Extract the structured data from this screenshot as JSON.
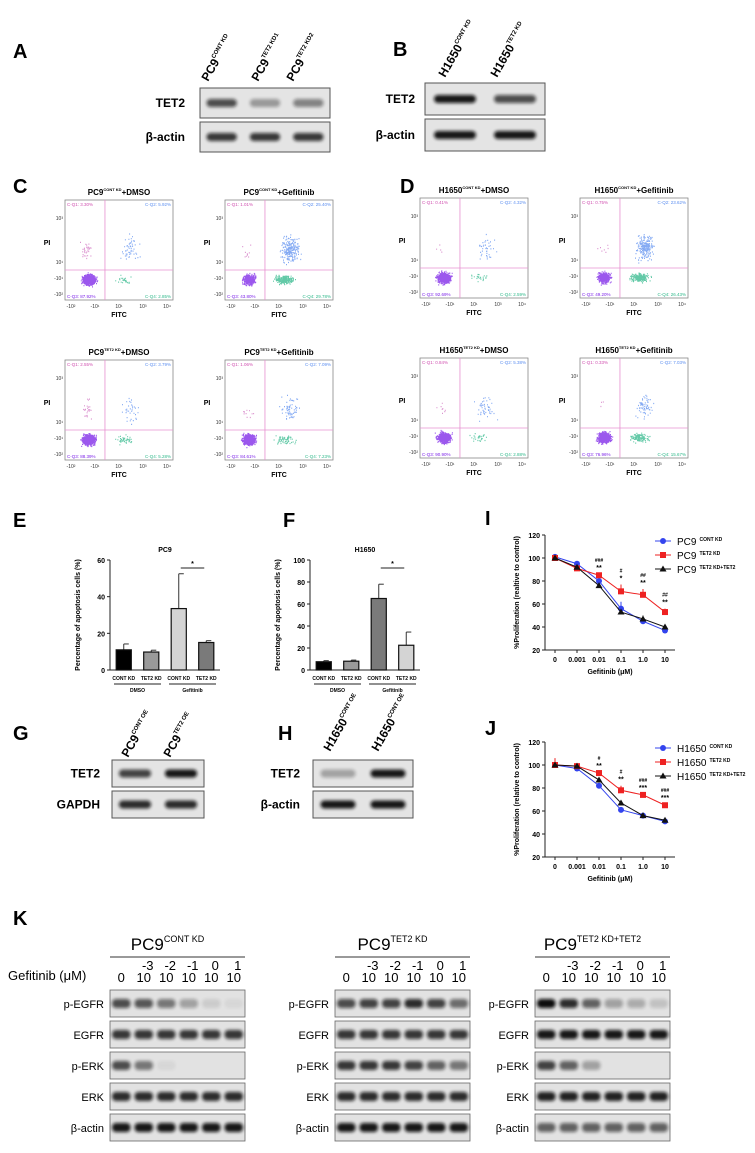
{
  "panel_A": {
    "label": "A",
    "lanes": [
      {
        "base": "PC9",
        "sup": "CONT KD"
      },
      {
        "base": "PC9",
        "sup": "TET2 KD1"
      },
      {
        "base": "PC9",
        "sup": "TET2 KD2"
      }
    ],
    "rows": [
      "TET2",
      "β-actin"
    ],
    "bands": [
      [
        0.7,
        0.35,
        0.45
      ],
      [
        0.8,
        0.8,
        0.8
      ]
    ]
  },
  "panel_B": {
    "label": "B",
    "lanes": [
      {
        "base": "H1650",
        "sup": "CONT KD"
      },
      {
        "base": "H1650",
        "sup": "TET2 KD"
      }
    ],
    "rows": [
      "TET2",
      "β-actin"
    ],
    "bands": [
      [
        0.95,
        0.7
      ],
      [
        0.95,
        0.95
      ]
    ]
  },
  "panel_C": {
    "label": "C",
    "x_label": "FITC",
    "y_label": "PI",
    "x_ticks": [
      "-10²",
      "-10¹",
      "10¹",
      "10³",
      "10⁴"
    ],
    "y_ticks": [
      "10³",
      "10¹",
      "-10¹",
      "-10²"
    ],
    "plots": [
      {
        "base": "PC9",
        "sup": "CONT KD",
        "suffix": "+DMSO",
        "q1": "C-Q1: 3.30%",
        "q2": "C-Q2: 5.92%",
        "q3": "C-Q3: 87.92%",
        "q4": "C-Q4: 2.85%",
        "fractions": [
          3.3,
          5.92,
          87.92,
          2.85
        ]
      },
      {
        "base": "PC9",
        "sup": "CONT KD",
        "suffix": "+Gefitinib",
        "q1": "C-Q1: 1.01%",
        "q2": "C-Q2: 25.40%",
        "q3": "C-Q3: 43.80%",
        "q4": "C-Q4: 29.78%",
        "fractions": [
          1.01,
          25.4,
          43.8,
          29.78
        ]
      },
      {
        "base": "PC9",
        "sup": "TET2 KD",
        "suffix": "+DMSO",
        "q1": "C-Q1: 2.55%",
        "q2": "C-Q2: 3.79%",
        "q3": "C-Q3: 88.39%",
        "q4": "C-Q4: 5.28%",
        "fractions": [
          2.55,
          3.79,
          88.39,
          5.28
        ]
      },
      {
        "base": "PC9",
        "sup": "TET2 KD",
        "suffix": "+Gefitinib",
        "q1": "C-Q1: 1.06%",
        "q2": "C-Q2: 7.09%",
        "q3": "C-Q3: 84.61%",
        "q4": "C-Q4: 7.23%",
        "fractions": [
          1.06,
          7.09,
          84.61,
          7.23
        ]
      }
    ]
  },
  "panel_D": {
    "label": "D",
    "x_label": "FITC",
    "y_label": "PI",
    "x_ticks": [
      "-10²",
      "-10¹",
      "10¹",
      "10³",
      "10⁴"
    ],
    "y_ticks": [
      "10³",
      "10¹",
      "-10¹",
      "-10²"
    ],
    "plots": [
      {
        "base": "H1650",
        "sup": "CONT KD",
        "suffix": "+DMSO",
        "q1": "C-Q1: 0.41%",
        "q2": "C-Q2: 4.32%",
        "q3": "C-Q3: 92.69%",
        "q4": "C-Q4: 2.59%",
        "fractions": [
          0.41,
          4.32,
          92.69,
          2.59
        ]
      },
      {
        "base": "H1650",
        "sup": "CONT KD",
        "suffix": "+Gefitinib",
        "q1": "C-Q1: 0.75%",
        "q2": "C-Q2: 23.62%",
        "q3": "C-Q3: 49.20%",
        "q4": "C-Q4: 26.43%",
        "fractions": [
          0.75,
          23.62,
          49.2,
          26.43
        ]
      },
      {
        "base": "H1650",
        "sup": "TET2 KD",
        "suffix": "+DMSO",
        "q1": "C-Q1: 0.84%",
        "q2": "C-Q2: 5.38%",
        "q3": "C-Q3: 90.90%",
        "q4": "C-Q4: 2.88%",
        "fractions": [
          0.84,
          5.38,
          90.9,
          2.88
        ]
      },
      {
        "base": "H1650",
        "sup": "TET2 KD",
        "suffix": "+Gefitinib",
        "q1": "C-Q1: 0.33%",
        "q2": "C-Q2: 7.03%",
        "q3": "C-Q3: 76.96%",
        "q4": "C-Q4: 15.67%",
        "fractions": [
          0.33,
          7.03,
          76.96,
          15.67
        ]
      }
    ]
  },
  "chart_data": [
    {
      "id": "E",
      "label": "E",
      "type": "bar",
      "title": "PC9",
      "ylabel": "Percentage of apoptosis cells (%)",
      "xlabel": "",
      "categories": [
        "CONT KD",
        "TET2 KD",
        "CONT KD",
        "TET2 KD"
      ],
      "groups": [
        "DMSO",
        "Gefitinib"
      ],
      "values": [
        11,
        9.8,
        33.5,
        15
      ],
      "errors": [
        3.2,
        1,
        19,
        1
      ],
      "colors": [
        "#000000",
        "#9a9a9a",
        "#d4d4d4",
        "#7a7a7a"
      ],
      "ylim": [
        0,
        60
      ],
      "yticks": [
        0,
        20,
        40,
        60
      ],
      "significance": "*"
    },
    {
      "id": "F",
      "label": "F",
      "type": "bar",
      "title": "H1650",
      "ylabel": "Percentage of apoptosis cells (%)",
      "xlabel": "",
      "categories": [
        "CONT KD",
        "TET2 KD",
        "CONT KD",
        "TET2 KD"
      ],
      "groups": [
        "DMSO",
        "Gefitinib"
      ],
      "values": [
        7.5,
        8,
        65,
        22.5
      ],
      "errors": [
        1,
        1,
        13,
        12
      ],
      "colors": [
        "#000000",
        "#9a9a9a",
        "#7a7a7a",
        "#d4d4d4"
      ],
      "ylim": [
        0,
        100
      ],
      "yticks": [
        0,
        20,
        40,
        60,
        80,
        100
      ],
      "significance": "*"
    },
    {
      "id": "I",
      "label": "I",
      "type": "line",
      "ylabel": "%Proliferation (realtive to control)",
      "xlabel": "Gefitinib (μM)",
      "x": [
        "0",
        "0.001",
        "0.01",
        "0.1",
        "1.0",
        "10"
      ],
      "ylim": [
        20,
        120
      ],
      "yticks": [
        20,
        40,
        60,
        80,
        100,
        120
      ],
      "series": [
        {
          "base": "PC9",
          "sup": "CONT KD",
          "color": "#3344ee",
          "marker": "circle",
          "values": [
            101,
            95,
            80,
            56,
            45,
            37
          ],
          "errors": [
            1,
            1,
            1,
            6,
            2,
            1
          ]
        },
        {
          "base": "PC9",
          "sup": "TET2 KD",
          "color": "#ee2222",
          "marker": "square",
          "values": [
            100,
            91,
            85,
            71,
            68,
            53
          ],
          "errors": [
            1,
            1,
            1,
            6,
            5,
            3
          ]
        },
        {
          "base": "PC9",
          "sup": "TET2 KD+TET2",
          "color": "#111111",
          "marker": "triangle",
          "values": [
            100,
            92,
            76,
            53,
            47,
            40
          ],
          "errors": [
            1,
            1,
            1,
            1,
            3,
            1
          ]
        }
      ],
      "annotations": [
        {
          "x": "0.01",
          "hash": "###",
          "star": "**"
        },
        {
          "x": "0.1",
          "hash": "#",
          "star": "*"
        },
        {
          "x": "1.0",
          "hash": "##",
          "star": "**"
        },
        {
          "x": "10",
          "hash": "##",
          "star": "**"
        }
      ]
    },
    {
      "id": "J",
      "label": "J",
      "type": "line",
      "ylabel": "%Proliferation (relative to control)",
      "xlabel": "Gefitinib (μM)",
      "x": [
        "0",
        "0.001",
        "0.01",
        "0.1",
        "1.0",
        "10"
      ],
      "ylim": [
        20,
        120
      ],
      "yticks": [
        20,
        40,
        60,
        80,
        100,
        120
      ],
      "series": [
        {
          "base": "H1650",
          "sup": "CONT KD",
          "color": "#3344ee",
          "marker": "circle",
          "values": [
            100,
            97,
            82,
            61,
            56,
            51
          ],
          "errors": [
            1,
            1,
            1,
            1,
            1,
            1
          ]
        },
        {
          "base": "H1650",
          "sup": "TET2 KD",
          "color": "#ee2222",
          "marker": "square",
          "values": [
            100,
            99,
            93,
            78,
            74,
            65
          ],
          "errors": [
            6,
            1,
            1,
            4,
            1,
            1
          ]
        },
        {
          "base": "H1650",
          "sup": "TET2 KD+TET2",
          "color": "#111111",
          "marker": "triangle",
          "values": [
            100,
            99,
            87,
            67,
            56,
            52
          ],
          "errors": [
            1,
            1,
            1,
            1,
            1,
            1
          ]
        }
      ],
      "annotations": [
        {
          "x": "0.01",
          "hash": "#",
          "star": "**"
        },
        {
          "x": "0.1",
          "hash": "#",
          "star": "**"
        },
        {
          "x": "1.0",
          "hash": "###",
          "star": "***"
        },
        {
          "x": "10",
          "hash": "###",
          "star": "***"
        }
      ]
    }
  ],
  "panel_G": {
    "label": "G",
    "lanes": [
      {
        "base": "PC9",
        "sup": "CONT OE"
      },
      {
        "base": "PC9",
        "sup": "TET2 OE"
      }
    ],
    "rows": [
      "TET2",
      "GAPDH"
    ],
    "bands": [
      [
        0.75,
        0.95
      ],
      [
        0.85,
        0.85
      ]
    ]
  },
  "panel_H": {
    "label": "H",
    "lanes": [
      {
        "base": "H1650",
        "sup": "CONT OE"
      },
      {
        "base": "H1650",
        "sup": "CONT OE"
      }
    ],
    "rows": [
      "TET2",
      "β-actin"
    ],
    "bands": [
      [
        0.3,
        0.95
      ],
      [
        0.95,
        0.95
      ]
    ]
  },
  "panel_K": {
    "label": "K",
    "dose_label": "Gefitinib (μM)",
    "doses": [
      {
        "b": "0",
        "e": ""
      },
      {
        "b": "10",
        "e": "-3"
      },
      {
        "b": "10",
        "e": "-2"
      },
      {
        "b": "10",
        "e": "-1"
      },
      {
        "b": "10",
        "e": "0"
      },
      {
        "b": "10",
        "e": "1"
      }
    ],
    "rows": [
      "p-EGFR",
      "EGFR",
      "p-ERK",
      "ERK",
      "β-actin"
    ],
    "groups": [
      {
        "base": "PC9",
        "sup": "CONT KD",
        "bands": [
          [
            0.7,
            0.65,
            0.5,
            0.3,
            0.1,
            0.05
          ],
          [
            0.8,
            0.8,
            0.8,
            0.8,
            0.8,
            0.8
          ],
          [
            0.7,
            0.5,
            0.05,
            0,
            0,
            0
          ],
          [
            0.85,
            0.85,
            0.85,
            0.85,
            0.85,
            0.85
          ],
          [
            0.95,
            0.95,
            0.95,
            0.95,
            0.95,
            0.95
          ]
        ]
      },
      {
        "base": "PC9",
        "sup": "TET2 KD",
        "bands": [
          [
            0.7,
            0.75,
            0.75,
            0.85,
            0.75,
            0.55
          ],
          [
            0.8,
            0.8,
            0.8,
            0.8,
            0.8,
            0.8
          ],
          [
            0.8,
            0.8,
            0.8,
            0.75,
            0.6,
            0.5
          ],
          [
            0.85,
            0.85,
            0.85,
            0.85,
            0.85,
            0.85
          ],
          [
            0.95,
            0.95,
            0.95,
            0.95,
            0.95,
            0.95
          ]
        ]
      },
      {
        "base": "PC9",
        "sup": "TET2 KD+TET2",
        "bands": [
          [
            1,
            0.85,
            0.6,
            0.3,
            0.25,
            0.15
          ],
          [
            0.95,
            0.95,
            0.95,
            0.95,
            0.95,
            0.95
          ],
          [
            0.75,
            0.6,
            0.3,
            0,
            0,
            0
          ],
          [
            0.9,
            0.9,
            0.9,
            0.9,
            0.9,
            0.9
          ],
          [
            0.6,
            0.6,
            0.6,
            0.6,
            0.6,
            0.6
          ]
        ]
      }
    ]
  }
}
